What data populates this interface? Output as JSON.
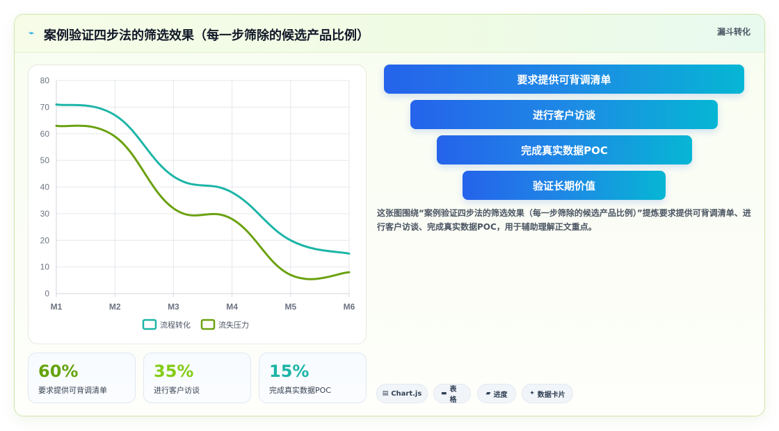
{
  "header": {
    "title": "案例验证四步法的筛选效果（每一步筛除的候选产品比例）",
    "tag": "漏斗转化",
    "icon": "sparkle-icon"
  },
  "chart_data": {
    "type": "line",
    "x": [
      "M1",
      "M2",
      "M3",
      "M4",
      "M5",
      "M6"
    ],
    "series": [
      {
        "name": "流程转化",
        "values": [
          71,
          67,
          44,
          38,
          20,
          15
        ],
        "color": "#1cb5a6"
      },
      {
        "name": "流失压力",
        "values": [
          63,
          59,
          32,
          28,
          7,
          8
        ],
        "color": "#6aa10f"
      }
    ],
    "ylim": [
      0,
      80
    ],
    "yticks": [
      0,
      10,
      20,
      30,
      40,
      50,
      60,
      70,
      80
    ],
    "grid": true,
    "legend": "bottom"
  },
  "stats": [
    {
      "value": "60%",
      "label": "要求提供可背调清单",
      "color": "#65a30d"
    },
    {
      "value": "35%",
      "label": "进行客户访谈",
      "color": "#84cc16"
    },
    {
      "value": "15%",
      "label": "完成真实数据POC",
      "color": "#1cb5a6"
    }
  ],
  "funnel": [
    {
      "label": "要求提供可背调清单"
    },
    {
      "label": "进行客户访谈"
    },
    {
      "label": "完成真实数据POC"
    },
    {
      "label": "验证长期价值"
    }
  ],
  "description": "这张图围绕“案例验证四步法的筛选效果（每一步筛除的候选产品比例）”提炼要求提供可背调清单、进行客户访谈、完成真实数据POC，用于辅助理解正文重点。",
  "chips": [
    {
      "icon": "chart-icon",
      "glyph": "▤",
      "label": "Chart.js"
    },
    {
      "icon": "table-icon",
      "glyph": "▬",
      "label": "表格"
    },
    {
      "icon": "progress-icon",
      "glyph": "▰",
      "label": "进度"
    },
    {
      "icon": "data-card-icon",
      "glyph": "✦",
      "label": "数据卡片"
    }
  ]
}
